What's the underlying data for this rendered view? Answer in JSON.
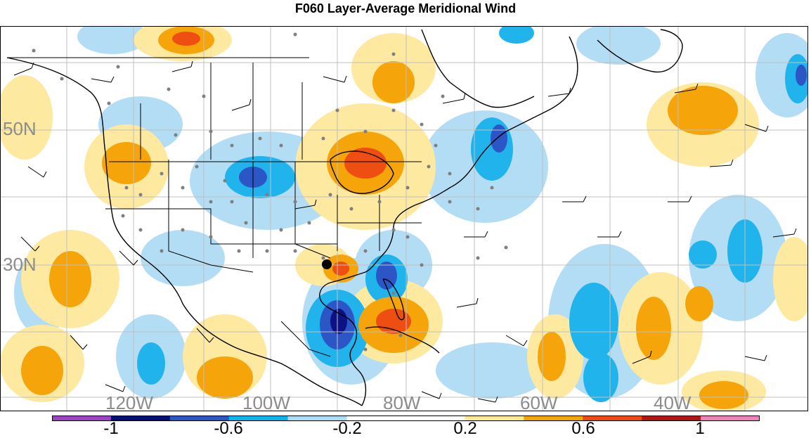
{
  "title": "F060 Layer-Average Meridional Wind",
  "map": {
    "lat_labels": [
      "50N",
      "30N"
    ],
    "lon_labels": [
      "120W",
      "100W",
      "80W",
      "60W",
      "40W"
    ],
    "label_color": "#8c8c8c",
    "gridline_color": "#bfbfbf",
    "coastline_color": "#000000",
    "station_dot_color": "#7f7f7f",
    "marker_color": "#000000"
  },
  "colorbar": {
    "colors": [
      "#a040c8",
      "#00107a",
      "#2a55c8",
      "#0ab4f0",
      "#aadcf8",
      "#ffffff",
      "#ffffff",
      "#ffe890",
      "#f5a500",
      "#f04a10",
      "#b01414",
      "#f080b8"
    ],
    "labels": [
      "-1",
      "-0.6",
      "-0.2",
      "0.2",
      "0.6",
      "1"
    ]
  }
}
